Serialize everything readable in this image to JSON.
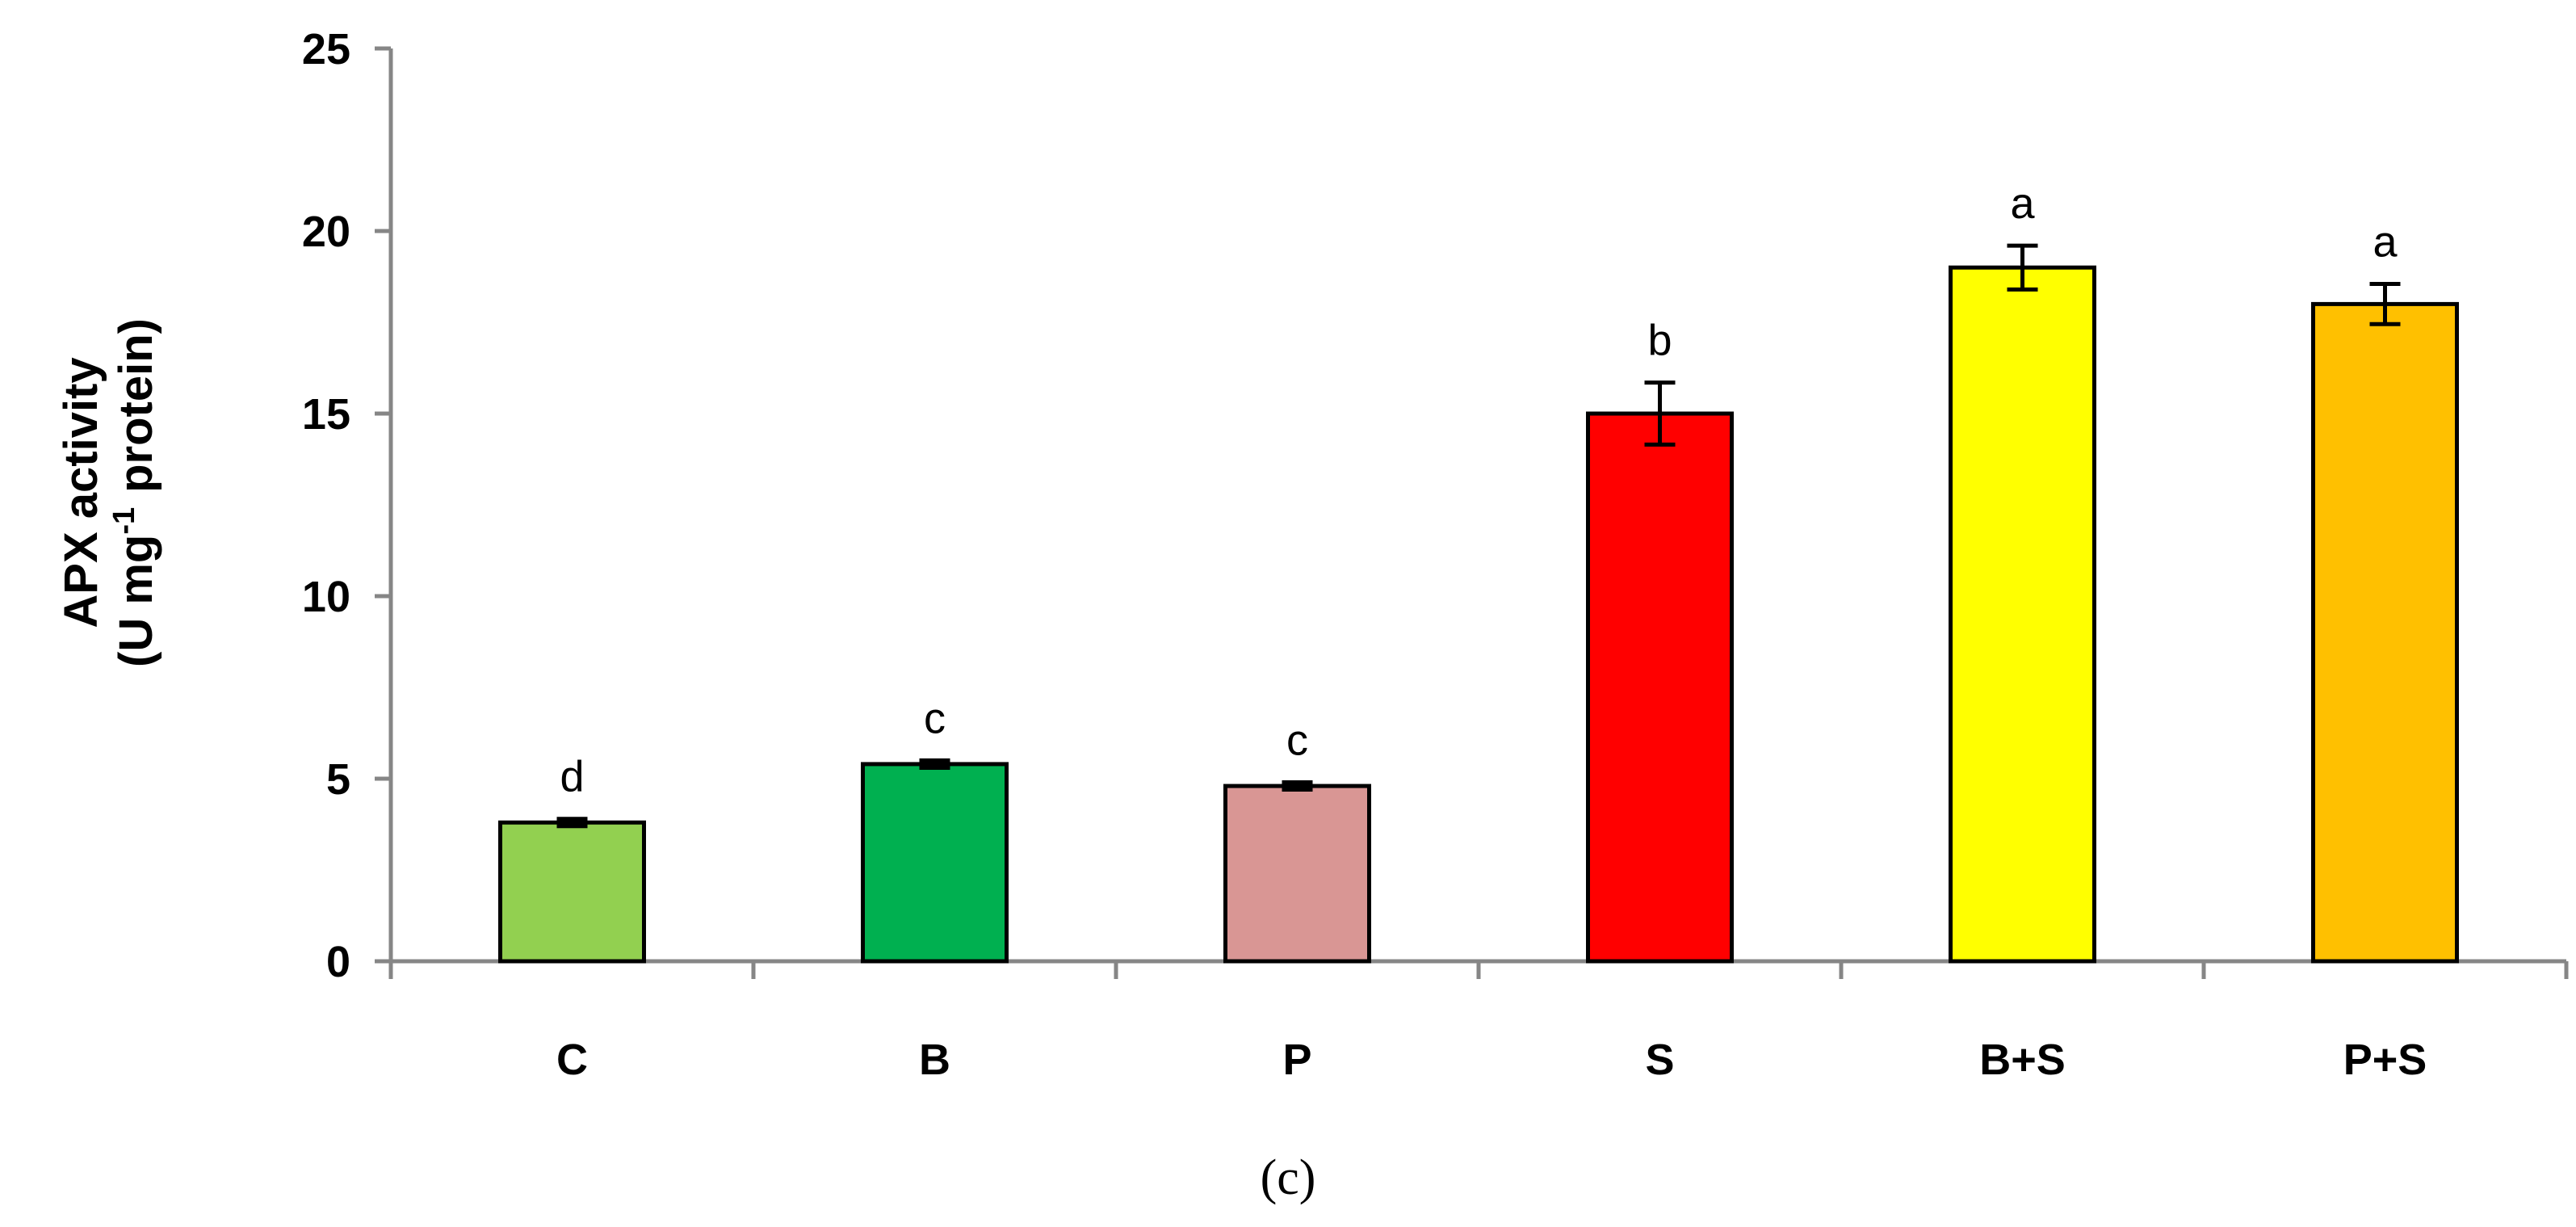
{
  "chart_data": {
    "type": "bar",
    "categories": [
      "C",
      "B",
      "P",
      "S",
      "B+S",
      "P+S"
    ],
    "values": [
      3.8,
      5.4,
      4.8,
      15.0,
      19.0,
      18.0
    ],
    "errors": [
      0.1,
      0.1,
      0.1,
      0.85,
      0.6,
      0.55
    ],
    "significance": [
      "d",
      "c",
      "c",
      "b",
      "a",
      "a"
    ],
    "bar_colors": [
      "#92D050",
      "#00B050",
      "#D99694",
      "#FF0000",
      "#FFFF00",
      "#FFC000"
    ],
    "ylabel_line1": "APX activity",
    "ylabel_line2_prefix": "(U mg",
    "ylabel_superscript": "-1",
    "ylabel_line2_suffix": "protein)",
    "ylim": [
      0,
      25
    ],
    "yticks": [
      "0",
      "5",
      "10",
      "15",
      "20",
      "25"
    ],
    "grid": false,
    "panel_label": "(c)"
  }
}
